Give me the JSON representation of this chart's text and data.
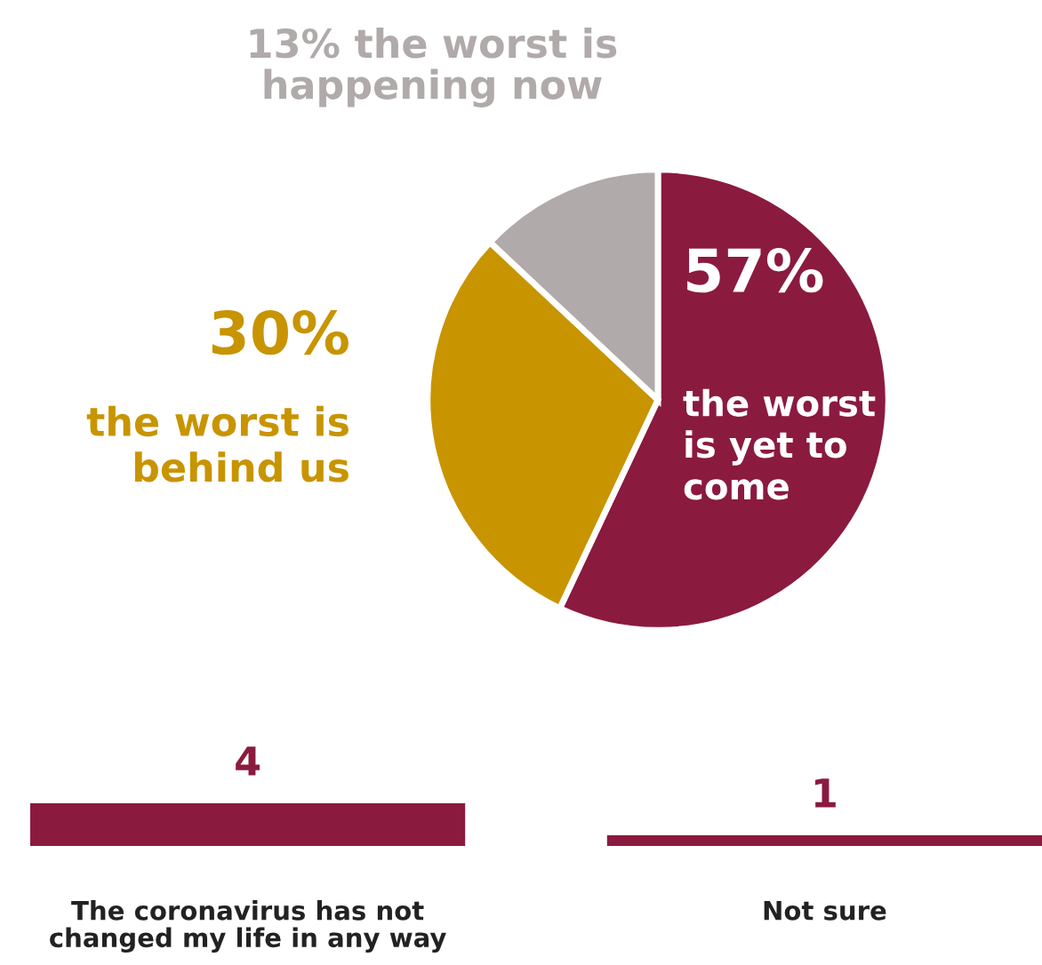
{
  "chart_data": [
    {
      "type": "pie",
      "categories": [
        "the worst\nis yet to\ncome",
        "the worst is\nbehind us",
        "the worst is\nhappening now"
      ],
      "values": [
        57,
        30,
        13
      ],
      "value_labels": [
        "57%",
        "30%",
        "13%"
      ],
      "colors": [
        "#8b1a3f",
        "#c89400",
        "#b0abaa"
      ],
      "legend": false
    },
    {
      "type": "bar",
      "categories": [
        "The coronavirus has not\nchanged my life in any way",
        "Not sure"
      ],
      "values": [
        4,
        1
      ],
      "color": "#8b1a3f",
      "data_labels": true,
      "tick_labels": "x",
      "grid": false
    }
  ]
}
